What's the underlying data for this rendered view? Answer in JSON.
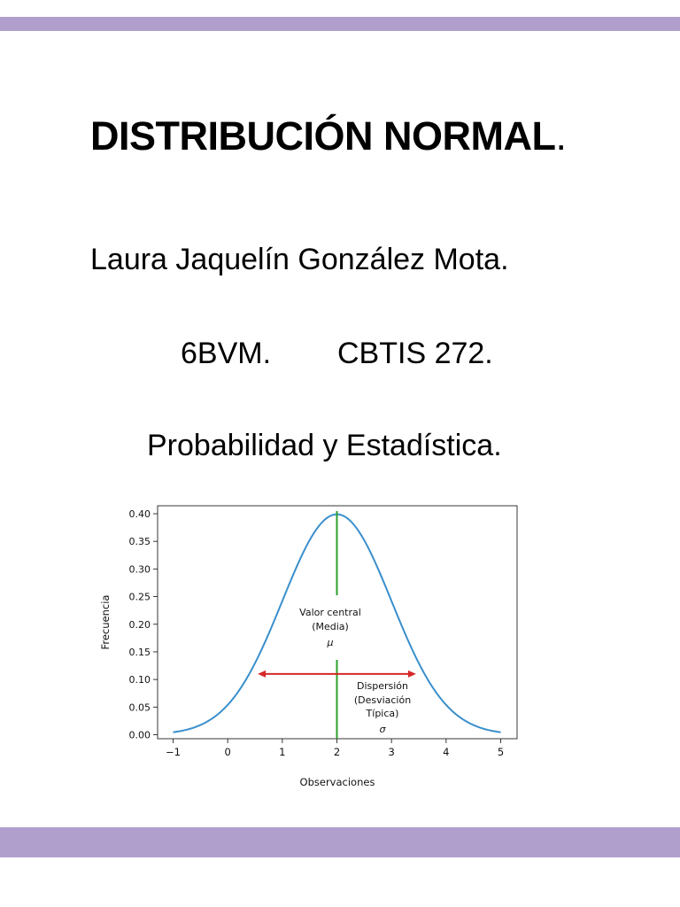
{
  "colors": {
    "band": "#b09fcc",
    "curve": "#3a8fcc",
    "mean_line": "#2ca02c",
    "arrow": "#d62728"
  },
  "title": {
    "text": "DISTRIBUCIÓN NORMAL",
    "dot": "."
  },
  "author": "Laura Jaquelín González Mota.",
  "group": "6BVM.",
  "school": "CBTIS 272.",
  "subject": "Probabilidad y Estadística.",
  "chart_data": {
    "type": "line",
    "xlabel": "Observaciones",
    "ylabel": "Frecuencia",
    "xlim": [
      -1,
      5
    ],
    "ylim": [
      0.0,
      0.4
    ],
    "x_ticks": [
      -1,
      0,
      1,
      2,
      3,
      4,
      5
    ],
    "x_tick_labels": [
      "−1",
      "0",
      "1",
      "2",
      "3",
      "4",
      "5"
    ],
    "y_ticks": [
      0.0,
      0.05,
      0.1,
      0.15,
      0.2,
      0.25,
      0.3,
      0.35,
      0.4
    ],
    "y_tick_labels": [
      "0.00",
      "0.05",
      "0.10",
      "0.15",
      "0.20",
      "0.25",
      "0.30",
      "0.35",
      "0.40"
    ],
    "grid": false,
    "series": [
      {
        "distribution": "normal",
        "mean": 2,
        "sd": 1,
        "x_range": [
          -1,
          5
        ]
      }
    ],
    "mean_line_x": 2,
    "dispersion_arrow": {
      "y": 0.11,
      "x_from": 0.55,
      "x_to": 3.45
    },
    "annotations": [
      {
        "lines": [
          "Valor central",
          "(Media)",
          "μ"
        ]
      },
      {
        "lines": [
          "Dispersión",
          "(Desviación",
          "Típica)",
          "σ"
        ]
      }
    ]
  }
}
